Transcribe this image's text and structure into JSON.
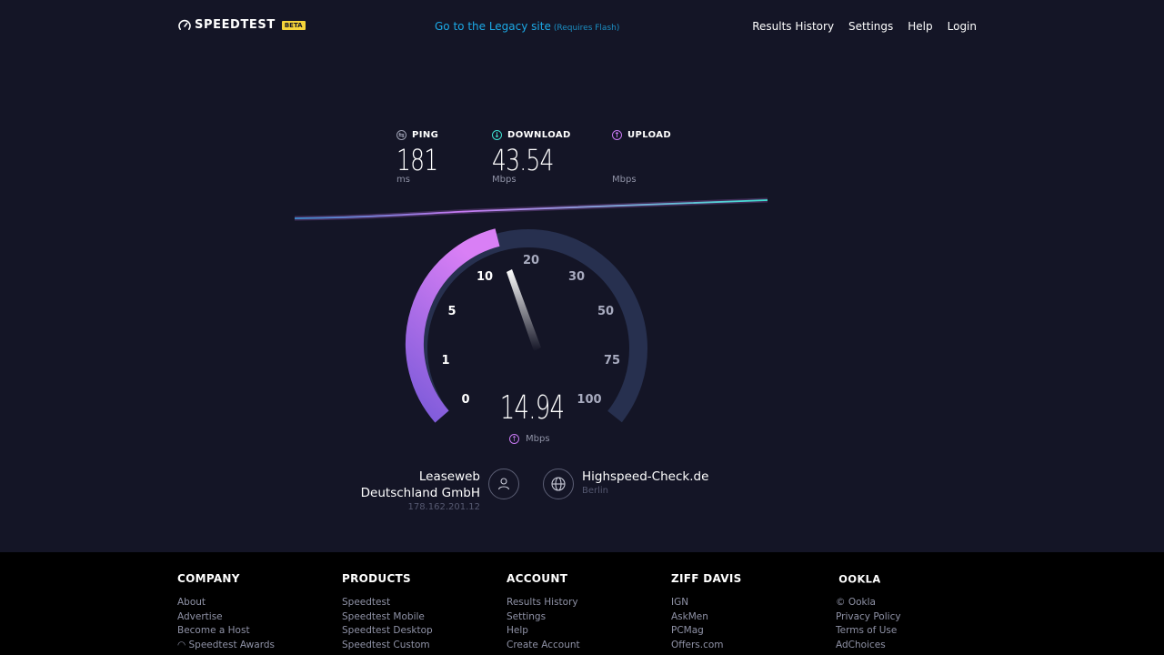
{
  "header": {
    "brand": "SPEEDTEST",
    "beta": "BETA",
    "legacy_link": "Go to the Legacy site",
    "legacy_note": "(Requires Flash)",
    "nav": [
      "Results History",
      "Settings",
      "Help",
      "Login"
    ]
  },
  "stats": {
    "ping": {
      "label": "PING",
      "value": "181",
      "unit": "ms"
    },
    "download": {
      "label": "DOWNLOAD",
      "value": "43.54",
      "unit": "Mbps"
    },
    "upload": {
      "label": "UPLOAD",
      "value": "",
      "unit": "Mbps"
    }
  },
  "gauge": {
    "current": "14.94",
    "unit": "Mbps",
    "ticks": [
      "0",
      "1",
      "5",
      "10",
      "20",
      "30",
      "50",
      "75",
      "100"
    ],
    "colors": {
      "active": "#c779f2",
      "track": "#27304f",
      "download": "#3fe0d0"
    }
  },
  "isp": {
    "name_line1": "Leaseweb",
    "name_line2": "Deutschland GmbH",
    "ip": "178.162.201.12"
  },
  "server": {
    "name": "Highspeed-Check.de",
    "city": "Berlin"
  },
  "footer": {
    "columns": [
      {
        "heading": "COMPANY",
        "links": [
          "About",
          "Advertise",
          "Become a Host",
          "Speedtest Awards"
        ]
      },
      {
        "heading": "PRODUCTS",
        "links": [
          "Speedtest",
          "Speedtest Mobile",
          "Speedtest Desktop",
          "Speedtest Custom"
        ]
      },
      {
        "heading": "ACCOUNT",
        "links": [
          "Results History",
          "Settings",
          "Help",
          "Create Account"
        ]
      },
      {
        "heading": "ZIFF DAVIS",
        "links": [
          "IGN",
          "AskMen",
          "PCMag",
          "Offers.com"
        ]
      },
      {
        "heading": "OOKLA",
        "links": [
          "© Ookla",
          "Privacy Policy",
          "Terms of Use",
          "AdChoices"
        ]
      }
    ]
  }
}
